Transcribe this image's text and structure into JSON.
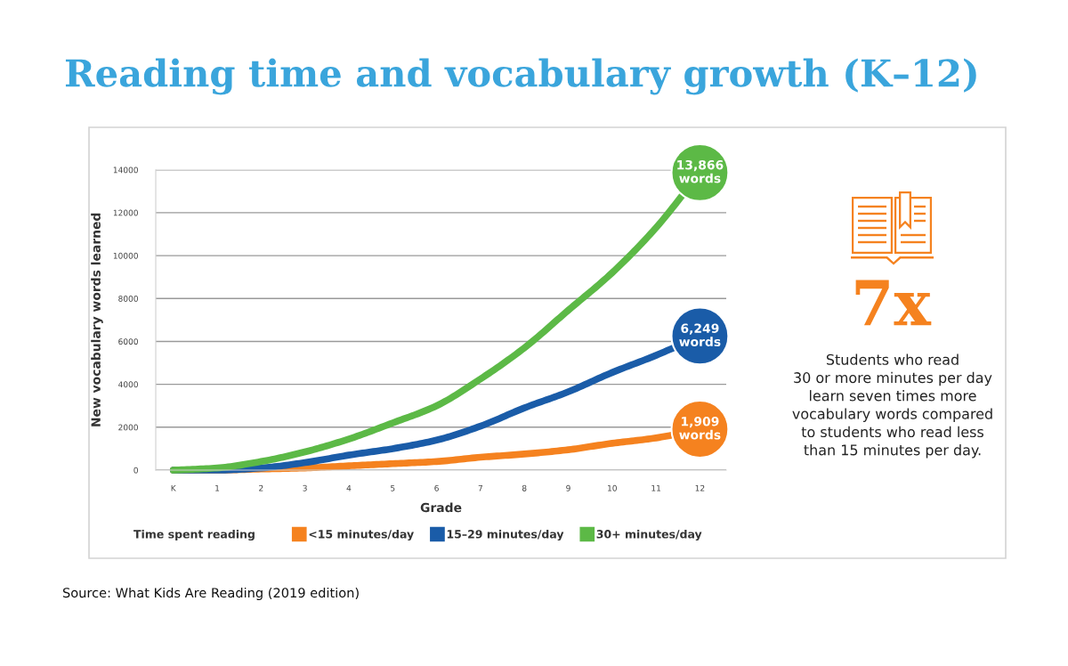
{
  "chart_data": {
    "type": "line",
    "title": "Reading time and vocabulary growth (K–12)",
    "xlabel": "Grade",
    "ylabel": "New vocabulary words learned",
    "categories": [
      "K",
      "1",
      "2",
      "3",
      "4",
      "5",
      "6",
      "7",
      "8",
      "9",
      "10",
      "11",
      "12"
    ],
    "series": [
      {
        "name": "<15 minutes/day",
        "color": "#f5821f",
        "values": [
          0,
          0,
          50,
          100,
          200,
          300,
          400,
          600,
          750,
          950,
          1250,
          1500,
          1909
        ]
      },
      {
        "name": "15–29 minutes/day",
        "color": "#1a5ca8",
        "values": [
          0,
          0,
          100,
          350,
          700,
          1000,
          1400,
          2050,
          2900,
          3650,
          4550,
          5350,
          6249
        ]
      },
      {
        "name": "30+ minutes/day",
        "color": "#5cb946",
        "values": [
          0,
          100,
          400,
          850,
          1450,
          2200,
          3000,
          4250,
          5700,
          7450,
          9200,
          11300,
          13866
        ]
      },
      {
        "type": "scatter",
        "marker": "circle",
        "x": [
          "12",
          "12",
          "12"
        ],
        "values": [
          1909,
          6249,
          13866
        ],
        "colors": [
          "#f5821f",
          "#1a5ca8",
          "#5cb946"
        ],
        "value_labels": [
          "1,909\nwords",
          "6,249\nwords",
          "13,866\nwords"
        ]
      }
    ],
    "ylim": [
      0,
      14000
    ],
    "yticks": [
      0,
      2000,
      4000,
      6000,
      8000,
      10000,
      12000,
      14000
    ],
    "grid": "y",
    "legend": "bottom",
    "legend_title": "Time spent reading",
    "line_style": "solid",
    "annotations": [
      "7x",
      "Students who read\n30 or more minutes per day\nlearn seven times more\nvocabulary words compared\nto students who read less\nthan 15 minutes per day.",
      "Source: What Kids Are Reading (2019 edition)"
    ]
  }
}
